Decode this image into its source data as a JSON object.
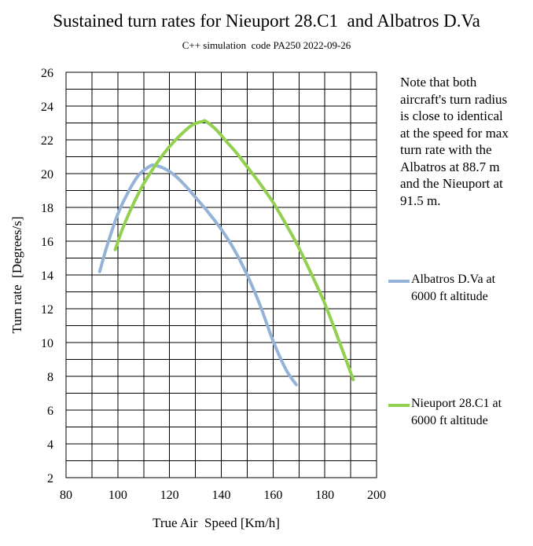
{
  "chart_data": {
    "type": "line",
    "title": "Sustained turn rates for Nieuport 28.C1  and Albatros D.Va",
    "subtitle": "C++ simulation  code PA250 2022-09-26",
    "xlabel": "True Air  Speed [Km/h]",
    "ylabel": "Turn rate  [Degrees/s]",
    "xlim": [
      80,
      200
    ],
    "ylim": [
      2,
      26
    ],
    "x_ticks": [
      "80",
      "100",
      "120",
      "140",
      "160",
      "180",
      "200"
    ],
    "y_ticks": [
      "2",
      "4",
      "6",
      "8",
      "10",
      "12",
      "14",
      "16",
      "18",
      "20",
      "22",
      "24",
      "26"
    ],
    "grid": true,
    "legend_position": "right",
    "annotation": "Note that both\naircraft's turn radius\nis close to identical\nat the speed for max\nturn rate with the\nAlbatros at 88.7 m\nand the Nieuport at\n91.5 m.",
    "series": [
      {
        "name": "Albatros D.Va at\n6000 ft altitude",
        "color": "#95b3d7",
        "x": [
          93,
          96,
          100,
          104,
          108,
          112,
          114,
          118,
          122,
          126,
          130,
          135,
          140,
          145,
          150,
          155,
          160,
          165,
          169
        ],
        "y": [
          14.2,
          15.8,
          17.6,
          18.9,
          19.9,
          20.4,
          20.5,
          20.3,
          19.9,
          19.3,
          18.6,
          17.7,
          16.7,
          15.5,
          14.0,
          12.2,
          10.1,
          8.4,
          7.5
        ]
      },
      {
        "name": "Nieuport 28.C1 at\n6000 ft altitude",
        "color": "#92d050",
        "x": [
          99,
          102,
          106,
          110,
          115,
          120,
          125,
          129,
          133,
          134,
          138,
          142,
          146,
          150,
          155,
          160,
          165,
          170,
          175,
          180,
          185,
          191
        ],
        "y": [
          15.5,
          16.8,
          18.2,
          19.4,
          20.6,
          21.6,
          22.4,
          22.9,
          23.1,
          23.1,
          22.6,
          21.9,
          21.2,
          20.4,
          19.4,
          18.3,
          17.0,
          15.6,
          14.0,
          12.3,
          10.3,
          7.8
        ]
      }
    ]
  }
}
